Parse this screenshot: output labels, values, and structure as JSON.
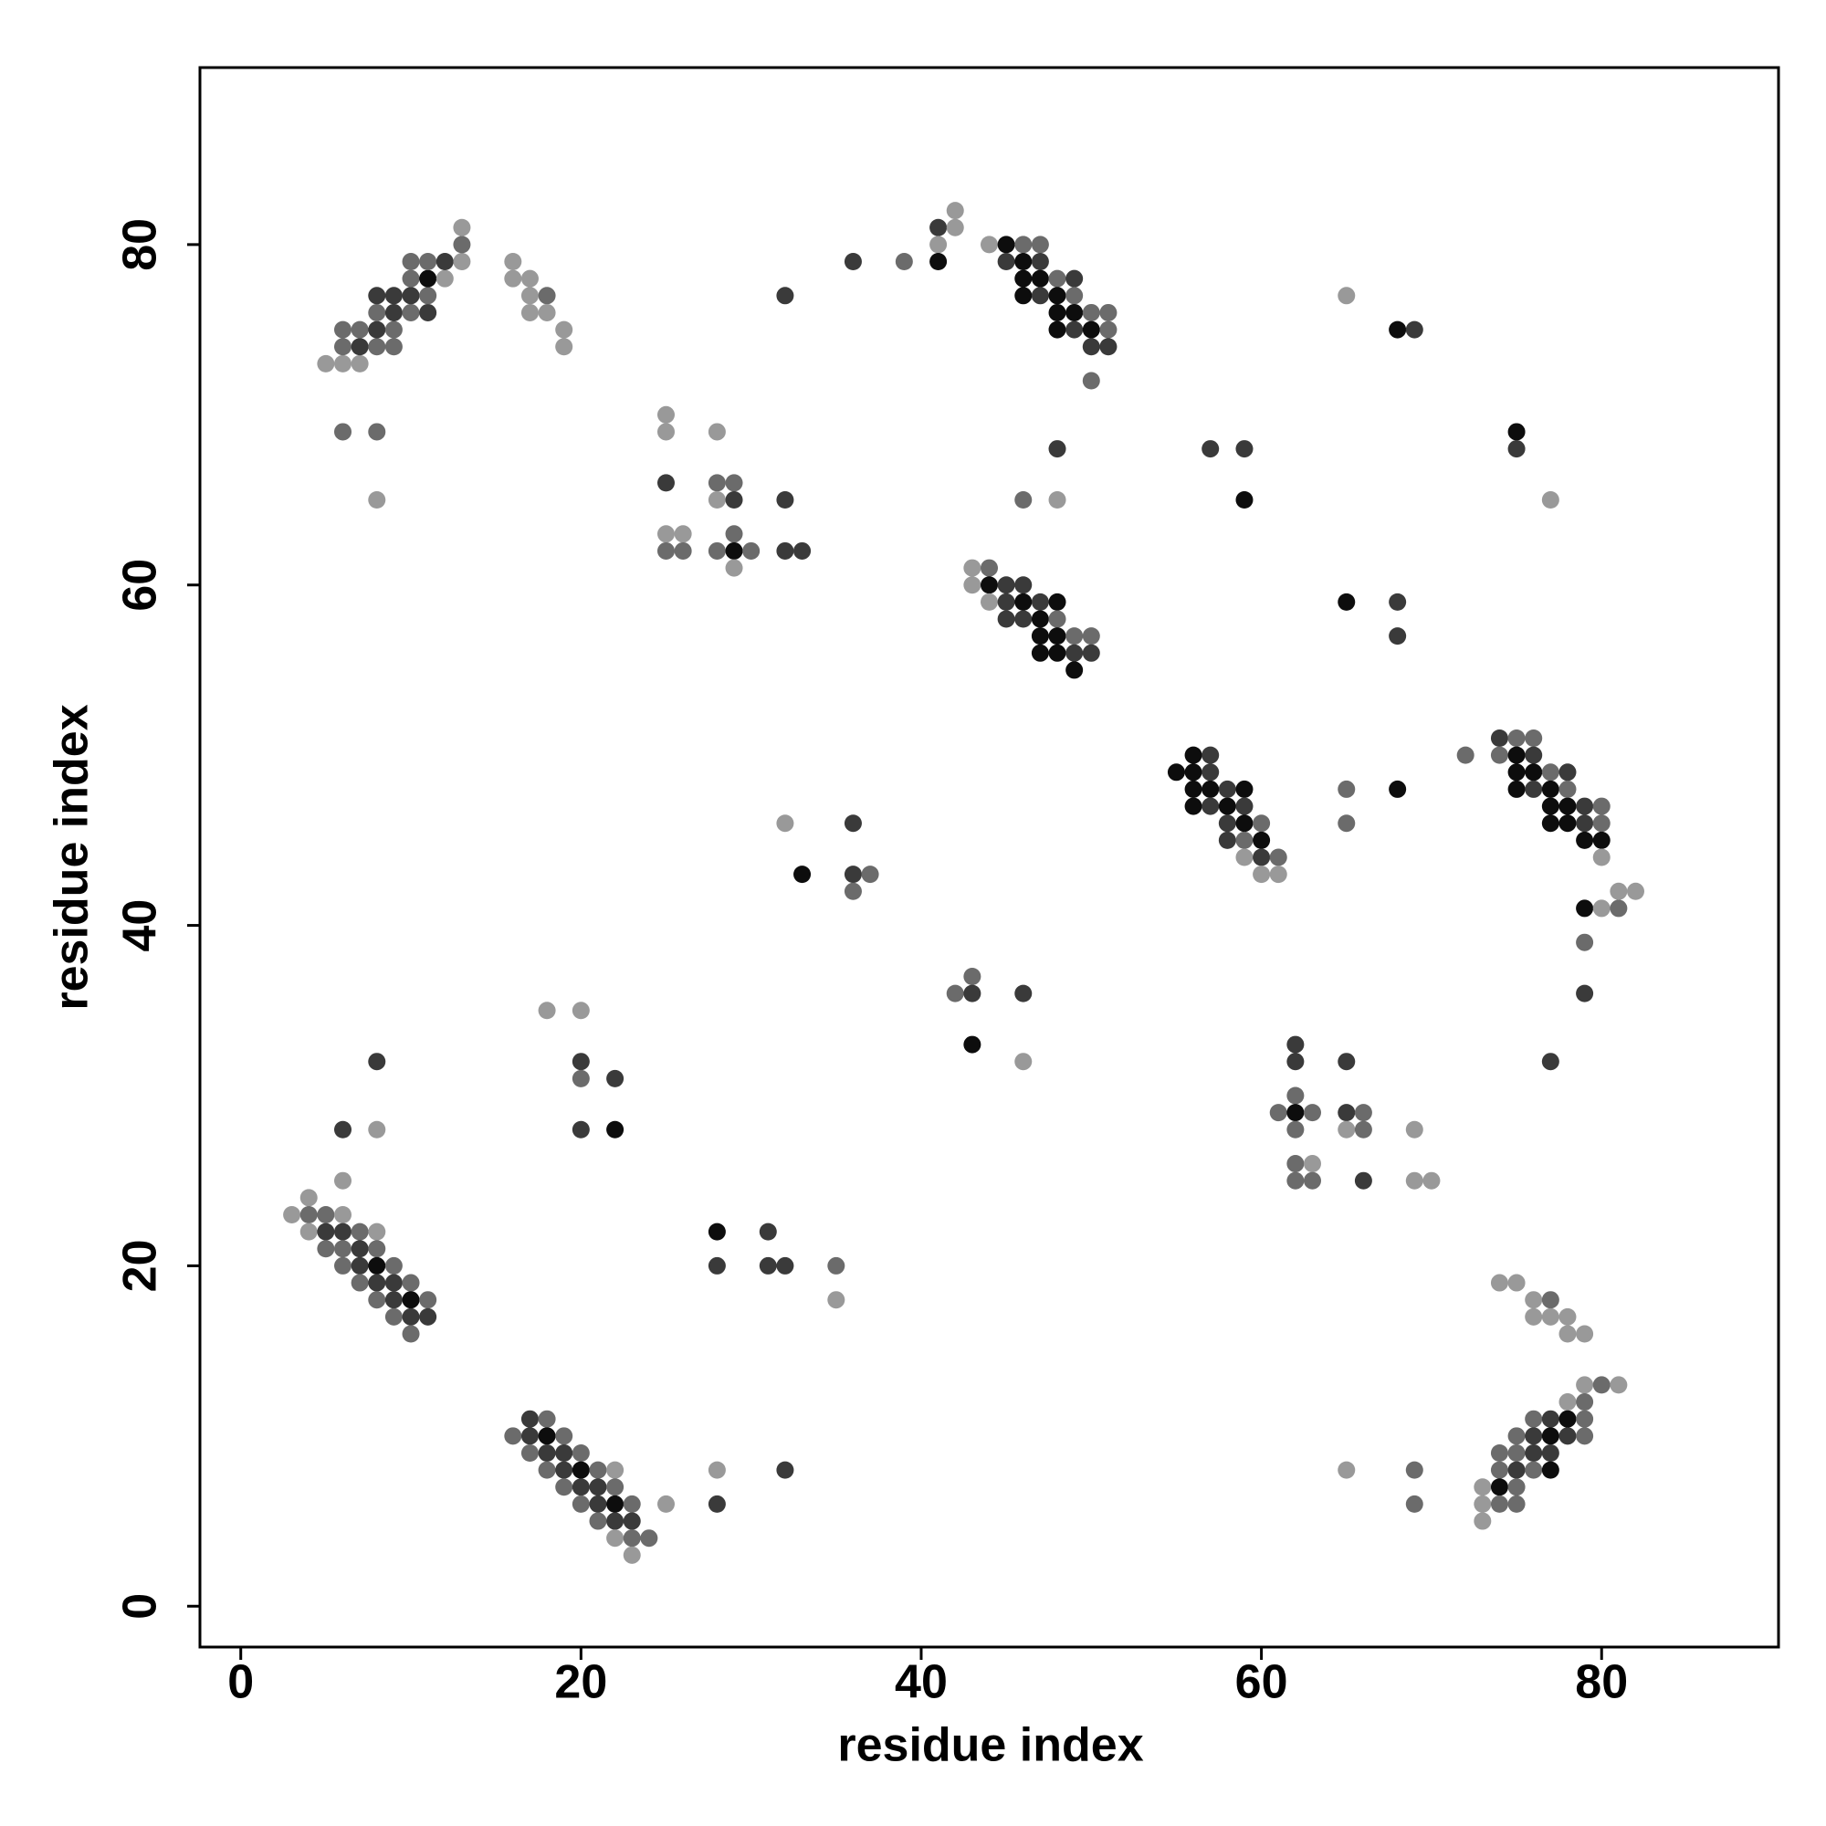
{
  "chart_data": {
    "type": "scatter",
    "xlabel": "residue index",
    "ylabel": "residue index",
    "xlim": [
      -2.4,
      90.4
    ],
    "ylim": [
      -2.4,
      90.4
    ],
    "xticks": [
      0,
      20,
      40,
      60,
      80
    ],
    "yticks": [
      0,
      20,
      40,
      60,
      80
    ],
    "x": [
      5,
      6,
      7,
      6,
      7,
      8,
      9,
      6,
      7,
      8,
      9,
      8,
      9,
      10,
      11,
      8,
      9,
      10,
      11,
      10,
      11,
      12,
      10,
      11,
      12,
      13,
      13,
      13,
      6,
      8,
      8,
      16,
      16,
      17,
      17,
      18,
      17,
      18,
      19,
      19,
      25,
      25,
      28,
      25,
      28,
      29,
      28,
      29,
      32,
      25,
      26,
      29,
      25,
      26,
      28,
      29,
      30,
      32,
      33,
      29,
      32,
      36,
      39,
      41,
      42,
      42,
      41,
      41,
      44,
      45,
      46,
      47,
      45,
      46,
      47,
      46,
      47,
      48,
      49,
      46,
      47,
      48,
      49,
      48,
      49,
      50,
      51,
      48,
      49,
      50,
      51,
      50,
      51,
      50,
      48,
      46,
      48,
      43,
      44,
      43,
      44,
      45,
      46,
      44,
      45,
      46,
      47,
      48,
      45,
      46,
      47,
      48,
      47,
      48,
      49,
      50,
      47,
      48,
      49,
      50,
      49,
      65,
      68,
      69,
      57,
      59,
      59,
      75,
      75,
      77,
      65,
      68,
      68,
      55,
      56,
      57,
      56,
      57,
      56,
      57,
      58,
      59,
      56,
      57,
      58,
      59,
      58,
      59,
      60,
      58,
      59,
      60,
      59,
      60,
      61,
      60,
      61,
      65,
      65,
      68,
      72,
      74,
      75,
      76,
      74,
      75,
      76,
      75,
      76,
      77,
      78,
      75,
      76,
      77,
      78,
      77,
      78,
      79,
      80,
      77,
      78,
      79,
      80,
      79,
      80,
      80,
      79,
      80,
      81,
      81,
      82,
      79,
      79,
      77,
      32,
      36,
      33,
      36,
      37,
      36,
      42,
      43,
      43,
      46,
      43,
      46,
      62,
      62,
      65,
      62,
      61,
      62,
      63,
      65,
      66,
      62,
      65,
      66,
      69,
      62,
      63,
      62,
      63,
      66,
      69,
      70,
      8,
      6,
      8,
      6,
      18,
      20,
      20,
      20,
      22,
      20,
      22,
      4,
      3,
      4,
      5,
      6,
      4,
      5,
      6,
      7,
      8,
      5,
      6,
      7,
      8,
      6,
      7,
      8,
      9,
      7,
      8,
      9,
      10,
      8,
      9,
      10,
      11,
      9,
      10,
      11,
      10,
      28,
      31,
      28,
      31,
      32,
      35,
      35,
      17,
      18,
      16,
      17,
      18,
      19,
      17,
      18,
      19,
      20,
      18,
      19,
      20,
      21,
      22,
      19,
      20,
      21,
      22,
      20,
      21,
      22,
      23,
      21,
      22,
      23,
      22,
      23,
      24,
      23,
      25,
      28,
      28,
      32,
      65,
      69,
      69,
      74,
      75,
      76,
      77,
      76,
      77,
      78,
      78,
      79,
      79,
      80,
      81,
      78,
      79,
      76,
      77,
      78,
      79,
      75,
      76,
      77,
      78,
      79,
      74,
      75,
      76,
      77,
      74,
      75,
      76,
      77,
      73,
      74,
      75,
      73,
      74,
      75,
      73
    ],
    "values": [
      73,
      73,
      73,
      74,
      74,
      74,
      74,
      75,
      75,
      75,
      75,
      76,
      76,
      76,
      76,
      77,
      77,
      77,
      77,
      78,
      78,
      78,
      79,
      79,
      79,
      79,
      80,
      81,
      69,
      69,
      65,
      79,
      78,
      78,
      77,
      77,
      76,
      76,
      75,
      74,
      70,
      69,
      69,
      66,
      66,
      66,
      65,
      65,
      65,
      63,
      63,
      63,
      62,
      62,
      62,
      62,
      62,
      62,
      62,
      61,
      77,
      79,
      79,
      81,
      82,
      81,
      80,
      79,
      80,
      80,
      80,
      80,
      79,
      79,
      79,
      78,
      78,
      78,
      78,
      77,
      77,
      77,
      77,
      76,
      76,
      76,
      76,
      75,
      75,
      75,
      75,
      74,
      74,
      72,
      68,
      65,
      65,
      61,
      61,
      60,
      60,
      60,
      60,
      59,
      59,
      59,
      59,
      59,
      58,
      58,
      58,
      58,
      57,
      57,
      57,
      57,
      56,
      56,
      56,
      56,
      55,
      77,
      75,
      75,
      68,
      68,
      65,
      69,
      68,
      65,
      59,
      59,
      57,
      49,
      50,
      50,
      49,
      49,
      48,
      48,
      48,
      48,
      47,
      47,
      47,
      47,
      46,
      46,
      46,
      45,
      45,
      45,
      44,
      44,
      44,
      43,
      43,
      48,
      46,
      48,
      50,
      51,
      51,
      51,
      50,
      50,
      50,
      49,
      49,
      49,
      49,
      48,
      48,
      48,
      48,
      47,
      47,
      47,
      47,
      46,
      46,
      46,
      46,
      45,
      45,
      44,
      41,
      41,
      41,
      42,
      42,
      39,
      36,
      32,
      46,
      46,
      43,
      43,
      43,
      42,
      36,
      37,
      36,
      36,
      33,
      32,
      33,
      32,
      32,
      30,
      29,
      29,
      29,
      29,
      29,
      28,
      28,
      28,
      28,
      26,
      26,
      25,
      25,
      25,
      25,
      25,
      32,
      28,
      28,
      25,
      35,
      35,
      32,
      31,
      31,
      28,
      28,
      24,
      23,
      23,
      23,
      23,
      22,
      22,
      22,
      22,
      22,
      21,
      21,
      21,
      21,
      20,
      20,
      20,
      20,
      19,
      19,
      19,
      19,
      18,
      18,
      18,
      18,
      17,
      17,
      17,
      16,
      22,
      22,
      20,
      20,
      20,
      20,
      18,
      11,
      11,
      10,
      10,
      10,
      10,
      9,
      9,
      9,
      9,
      8,
      8,
      8,
      8,
      8,
      7,
      7,
      7,
      7,
      6,
      6,
      6,
      6,
      5,
      5,
      5,
      4,
      4,
      4,
      3,
      6,
      8,
      6,
      8,
      8,
      8,
      6,
      19,
      19,
      18,
      18,
      17,
      17,
      17,
      16,
      16,
      13,
      13,
      13,
      12,
      12,
      11,
      11,
      11,
      11,
      10,
      10,
      10,
      10,
      10,
      9,
      9,
      9,
      9,
      8,
      8,
      8,
      8,
      7,
      7,
      7,
      6,
      6,
      6,
      5
    ],
    "colors": [
      "#999999",
      "#999999",
      "#999999",
      "#6b6b6b",
      "#3a3a3a",
      "#6b6b6b",
      "#6b6b6b",
      "#6b6b6b",
      "#6b6b6b",
      "#3a3a3a",
      "#6b6b6b",
      "#6b6b6b",
      "#3a3a3a",
      "#6b6b6b",
      "#3a3a3a",
      "#3a3a3a",
      "#3a3a3a",
      "#3a3a3a",
      "#6b6b6b",
      "#6b6b6b",
      "#0d0d0d",
      "#999999",
      "#6b6b6b",
      "#6b6b6b",
      "#3a3a3a",
      "#999999",
      "#6b6b6b",
      "#999999",
      "#6b6b6b",
      "#6b6b6b",
      "#999999",
      "#999999",
      "#999999",
      "#999999",
      "#999999",
      "#6b6b6b",
      "#999999",
      "#999999",
      "#999999",
      "#999999",
      "#999999",
      "#999999",
      "#999999",
      "#3a3a3a",
      "#6b6b6b",
      "#6b6b6b",
      "#999999",
      "#3a3a3a",
      "#3a3a3a",
      "#999999",
      "#999999",
      "#6b6b6b",
      "#6b6b6b",
      "#6b6b6b",
      "#6b6b6b",
      "#0d0d0d",
      "#6b6b6b",
      "#3a3a3a",
      "#3a3a3a",
      "#999999",
      "#3a3a3a",
      "#3a3a3a",
      "#6b6b6b",
      "#3a3a3a",
      "#999999",
      "#999999",
      "#999999",
      "#0d0d0d",
      "#999999",
      "#0d0d0d",
      "#6b6b6b",
      "#6b6b6b",
      "#3a3a3a",
      "#0d0d0d",
      "#3a3a3a",
      "#0d0d0d",
      "#0d0d0d",
      "#6b6b6b",
      "#3a3a3a",
      "#0d0d0d",
      "#3a3a3a",
      "#0d0d0d",
      "#6b6b6b",
      "#0d0d0d",
      "#0d0d0d",
      "#6b6b6b",
      "#6b6b6b",
      "#0d0d0d",
      "#3a3a3a",
      "#0d0d0d",
      "#6b6b6b",
      "#3a3a3a",
      "#3a3a3a",
      "#6b6b6b",
      "#3a3a3a",
      "#6b6b6b",
      "#999999",
      "#999999",
      "#6b6b6b",
      "#999999",
      "#0d0d0d",
      "#3a3a3a",
      "#3a3a3a",
      "#999999",
      "#3a3a3a",
      "#0d0d0d",
      "#3a3a3a",
      "#0d0d0d",
      "#3a3a3a",
      "#3a3a3a",
      "#0d0d0d",
      "#6b6b6b",
      "#0d0d0d",
      "#0d0d0d",
      "#6b6b6b",
      "#6b6b6b",
      "#0d0d0d",
      "#0d0d0d",
      "#3a3a3a",
      "#3a3a3a",
      "#0d0d0d",
      "#999999",
      "#0d0d0d",
      "#3a3a3a",
      "#3a3a3a",
      "#3a3a3a",
      "#0d0d0d",
      "#0d0d0d",
      "#3a3a3a",
      "#999999",
      "#0d0d0d",
      "#3a3a3a",
      "#3a3a3a",
      "#0d0d0d",
      "#0d0d0d",
      "#3a3a3a",
      "#0d0d0d",
      "#3a3a3a",
      "#0d0d0d",
      "#0d0d0d",
      "#3a3a3a",
      "#0d0d0d",
      "#0d0d0d",
      "#3a3a3a",
      "#0d0d0d",
      "#3a3a3a",
      "#3a3a3a",
      "#0d0d0d",
      "#6b6b6b",
      "#3a3a3a",
      "#6b6b6b",
      "#0d0d0d",
      "#999999",
      "#3a3a3a",
      "#6b6b6b",
      "#999999",
      "#999999",
      "#6b6b6b",
      "#6b6b6b",
      "#0d0d0d",
      "#6b6b6b",
      "#3a3a3a",
      "#6b6b6b",
      "#6b6b6b",
      "#6b6b6b",
      "#0d0d0d",
      "#3a3a3a",
      "#0d0d0d",
      "#0d0d0d",
      "#6b6b6b",
      "#3a3a3a",
      "#0d0d0d",
      "#3a3a3a",
      "#0d0d0d",
      "#6b6b6b",
      "#0d0d0d",
      "#0d0d0d",
      "#3a3a3a",
      "#6b6b6b",
      "#0d0d0d",
      "#0d0d0d",
      "#3a3a3a",
      "#6b6b6b",
      "#0d0d0d",
      "#0d0d0d",
      "#999999",
      "#0d0d0d",
      "#999999",
      "#6b6b6b",
      "#999999",
      "#999999",
      "#6b6b6b",
      "#3a3a3a",
      "#3a3a3a",
      "#999999",
      "#3a3a3a",
      "#0d0d0d",
      "#3a3a3a",
      "#6b6b6b",
      "#6b6b6b",
      "#6b6b6b",
      "#6b6b6b",
      "#3a3a3a",
      "#3a3a3a",
      "#0d0d0d",
      "#999999",
      "#3a3a3a",
      "#3a3a3a",
      "#3a3a3a",
      "#6b6b6b",
      "#6b6b6b",
      "#0d0d0d",
      "#6b6b6b",
      "#3a3a3a",
      "#6b6b6b",
      "#6b6b6b",
      "#999999",
      "#6b6b6b",
      "#999999",
      "#6b6b6b",
      "#999999",
      "#6b6b6b",
      "#6b6b6b",
      "#3a3a3a",
      "#999999",
      "#999999",
      "#3a3a3a",
      "#3a3a3a",
      "#999999",
      "#999999",
      "#999999",
      "#999999",
      "#3a3a3a",
      "#6b6b6b",
      "#3a3a3a",
      "#3a3a3a",
      "#0d0d0d",
      "#999999",
      "#999999",
      "#6b6b6b",
      "#6b6b6b",
      "#999999",
      "#999999",
      "#3a3a3a",
      "#3a3a3a",
      "#6b6b6b",
      "#999999",
      "#6b6b6b",
      "#6b6b6b",
      "#3a3a3a",
      "#6b6b6b",
      "#6b6b6b",
      "#3a3a3a",
      "#0d0d0d",
      "#6b6b6b",
      "#6b6b6b",
      "#3a3a3a",
      "#3a3a3a",
      "#6b6b6b",
      "#6b6b6b",
      "#3a3a3a",
      "#0d0d0d",
      "#6b6b6b",
      "#6b6b6b",
      "#3a3a3a",
      "#3a3a3a",
      "#6b6b6b",
      "#0d0d0d",
      "#3a3a3a",
      "#3a3a3a",
      "#3a3a3a",
      "#3a3a3a",
      "#6b6b6b",
      "#999999",
      "#3a3a3a",
      "#6b6b6b",
      "#6b6b6b",
      "#3a3a3a",
      "#0d0d0d",
      "#6b6b6b",
      "#6b6b6b",
      "#3a3a3a",
      "#3a3a3a",
      "#6b6b6b",
      "#6b6b6b",
      "#3a3a3a",
      "#0d0d0d",
      "#6b6b6b",
      "#999999",
      "#6b6b6b",
      "#3a3a3a",
      "#3a3a3a",
      "#6b6b6b",
      "#6b6b6b",
      "#3a3a3a",
      "#0d0d0d",
      "#6b6b6b",
      "#6b6b6b",
      "#3a3a3a",
      "#3a3a3a",
      "#999999",
      "#6b6b6b",
      "#6b6b6b",
      "#999999",
      "#999999",
      "#999999",
      "#3a3a3a",
      "#3a3a3a",
      "#999999",
      "#6b6b6b",
      "#6b6b6b",
      "#999999",
      "#999999",
      "#999999",
      "#6b6b6b",
      "#999999",
      "#999999",
      "#999999",
      "#999999",
      "#999999",
      "#999999",
      "#6b6b6b",
      "#999999",
      "#999999",
      "#6b6b6b",
      "#6b6b6b",
      "#3a3a3a",
      "#0d0d0d",
      "#6b6b6b",
      "#6b6b6b",
      "#3a3a3a",
      "#0d0d0d",
      "#3a3a3a",
      "#6b6b6b",
      "#6b6b6b",
      "#6b6b6b",
      "#3a3a3a",
      "#3a3a3a",
      "#6b6b6b",
      "#3a3a3a",
      "#6b6b6b",
      "#0d0d0d",
      "#999999",
      "#0d0d0d",
      "#6b6b6b",
      "#999999",
      "#6b6b6b",
      "#6b6b6b",
      "#999999"
    ]
  }
}
